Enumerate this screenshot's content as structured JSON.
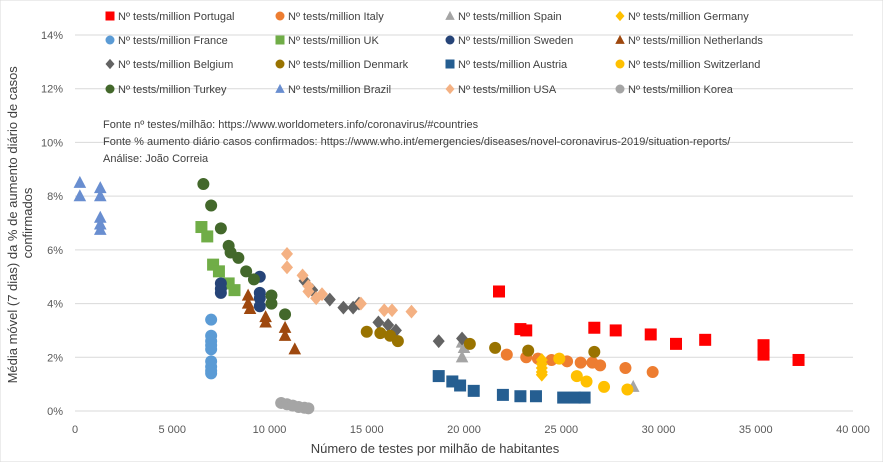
{
  "chart_data": {
    "type": "scatter",
    "xlabel": "Número  de testes por milhão de habitantes",
    "ylabel": "Média móvel (7 dias) da % de aumento diário de casos confirmados",
    "xlim": [
      0,
      40000
    ],
    "ylim": [
      0,
      14
    ],
    "x_ticks": [
      0,
      5000,
      10000,
      15000,
      20000,
      25000,
      30000,
      35000,
      40000
    ],
    "x_tick_labels": [
      "0",
      "5 000",
      "10 000",
      "15 000",
      "20 000",
      "25 000",
      "30 000",
      "35 000",
      "40 000"
    ],
    "y_ticks": [
      0,
      2,
      4,
      6,
      8,
      10,
      12,
      14
    ],
    "y_tick_labels": [
      "0%",
      "2%",
      "4%",
      "6%",
      "8%",
      "10%",
      "12%",
      "14%"
    ],
    "grid": "horizontal",
    "legend_position": "top",
    "notes": [
      "Fonte nº testes/milhão: https://www.worldometers.info/coronavirus/#countries",
      "Fonte % aumento diário casos confirmados: https://www.who.int/emergencies/diseases/novel-coronavirus-2019/situation-reports/",
      "Análise: João Correia"
    ],
    "series": [
      {
        "name": "Nº tests/million Portugal",
        "color": "#ff0000",
        "marker": "square",
        "points": [
          [
            21800,
            4.45
          ],
          [
            22900,
            3.05
          ],
          [
            23200,
            3.0
          ],
          [
            26700,
            3.1
          ],
          [
            27800,
            3.0
          ],
          [
            29600,
            2.85
          ],
          [
            30900,
            2.5
          ],
          [
            32400,
            2.65
          ],
          [
            35400,
            2.45
          ],
          [
            35400,
            2.1
          ],
          [
            37200,
            1.9
          ]
        ]
      },
      {
        "name": "Nº tests/million Italy",
        "color": "#ed7d31",
        "marker": "circle",
        "points": [
          [
            22200,
            2.1
          ],
          [
            23200,
            2.0
          ],
          [
            23800,
            1.95
          ],
          [
            24500,
            1.9
          ],
          [
            25300,
            1.85
          ],
          [
            26000,
            1.8
          ],
          [
            26600,
            1.8
          ],
          [
            27000,
            1.7
          ],
          [
            28300,
            1.6
          ],
          [
            29700,
            1.45
          ]
        ]
      },
      {
        "name": "Nº tests/million Spain",
        "color": "#a5a5a5",
        "marker": "triangle",
        "points": [
          [
            19900,
            2.55
          ],
          [
            20000,
            2.35
          ],
          [
            19900,
            2.0
          ],
          [
            28700,
            0.9
          ]
        ]
      },
      {
        "name": "Nº tests/million Germany",
        "color": "#ffc000",
        "marker": "diamond",
        "points": [
          [
            24000,
            1.9
          ],
          [
            24000,
            1.75
          ],
          [
            24000,
            1.6
          ],
          [
            24000,
            1.45
          ],
          [
            24000,
            1.35
          ]
        ]
      },
      {
        "name": "Nº tests/million France",
        "color": "#5b9bd5",
        "marker": "circle",
        "points": [
          [
            7000,
            3.4
          ],
          [
            7000,
            2.8
          ],
          [
            7000,
            2.6
          ],
          [
            7000,
            2.45
          ],
          [
            7000,
            2.3
          ],
          [
            7000,
            1.85
          ],
          [
            7000,
            1.65
          ],
          [
            7000,
            1.5
          ],
          [
            7000,
            1.4
          ]
        ]
      },
      {
        "name": "Nº tests/million UK",
        "color": "#70ad47",
        "marker": "square",
        "points": [
          [
            6500,
            6.85
          ],
          [
            6800,
            6.5
          ],
          [
            7100,
            5.45
          ],
          [
            7400,
            5.2
          ],
          [
            7900,
            4.75
          ],
          [
            8200,
            4.5
          ]
        ]
      },
      {
        "name": "Nº tests/million Sweden",
        "color": "#264478",
        "marker": "circle",
        "points": [
          [
            7500,
            4.75
          ],
          [
            7500,
            4.55
          ],
          [
            7500,
            4.4
          ],
          [
            9500,
            5.0
          ],
          [
            9500,
            4.4
          ],
          [
            9500,
            4.2
          ],
          [
            9500,
            3.9
          ]
        ]
      },
      {
        "name": "Nº tests/million Netherlands",
        "color": "#9e480e",
        "marker": "triangle",
        "points": [
          [
            8900,
            4.3
          ],
          [
            8900,
            4.0
          ],
          [
            9000,
            3.8
          ],
          [
            9800,
            3.5
          ],
          [
            9800,
            3.3
          ],
          [
            10800,
            3.1
          ],
          [
            10800,
            2.8
          ],
          [
            11300,
            2.3
          ]
        ]
      },
      {
        "name": "Nº tests/million Belgium",
        "color": "#636363",
        "marker": "diamond",
        "points": [
          [
            11800,
            4.85
          ],
          [
            12200,
            4.5
          ],
          [
            13100,
            4.15
          ],
          [
            13800,
            3.85
          ],
          [
            14300,
            3.85
          ],
          [
            14600,
            4.0
          ],
          [
            15600,
            3.3
          ],
          [
            16100,
            3.2
          ],
          [
            16500,
            3.0
          ],
          [
            18700,
            2.6
          ],
          [
            19900,
            2.7
          ]
        ]
      },
      {
        "name": "Nº tests/million Denmark",
        "color": "#997300",
        "marker": "circle",
        "points": [
          [
            15000,
            2.95
          ],
          [
            15700,
            2.9
          ],
          [
            16200,
            2.8
          ],
          [
            16600,
            2.6
          ],
          [
            20300,
            2.5
          ],
          [
            21600,
            2.35
          ],
          [
            23300,
            2.25
          ],
          [
            26700,
            2.2
          ]
        ]
      },
      {
        "name": "Nº tests/million Austria",
        "color": "#255e91",
        "marker": "square",
        "points": [
          [
            18700,
            1.3
          ],
          [
            19400,
            1.1
          ],
          [
            19800,
            0.95
          ],
          [
            20500,
            0.75
          ],
          [
            22000,
            0.6
          ],
          [
            22900,
            0.55
          ],
          [
            23700,
            0.55
          ],
          [
            25100,
            0.5
          ],
          [
            25700,
            0.5
          ],
          [
            26200,
            0.5
          ]
        ]
      },
      {
        "name": "Nº tests/million Switzerland",
        "color": "#ffc000",
        "marker": "circle",
        "points": [
          [
            24900,
            1.95
          ],
          [
            25800,
            1.3
          ],
          [
            26300,
            1.1
          ],
          [
            27200,
            0.9
          ],
          [
            28400,
            0.8
          ]
        ]
      },
      {
        "name": "Nº tests/million Turkey",
        "color": "#43682b",
        "marker": "circle",
        "points": [
          [
            6600,
            8.45
          ],
          [
            7000,
            7.65
          ],
          [
            7500,
            6.8
          ],
          [
            7900,
            6.15
          ],
          [
            8000,
            5.9
          ],
          [
            8400,
            5.7
          ],
          [
            8800,
            5.2
          ],
          [
            9200,
            4.9
          ],
          [
            10100,
            4.3
          ],
          [
            10100,
            4.0
          ],
          [
            10800,
            3.6
          ]
        ]
      },
      {
        "name": "Nº tests/million Brazil",
        "color": "#698ed0",
        "marker": "triangle",
        "points": [
          [
            250,
            8.5
          ],
          [
            250,
            8.0
          ],
          [
            1300,
            8.3
          ],
          [
            1300,
            8.0
          ],
          [
            1300,
            7.2
          ],
          [
            1300,
            6.95
          ],
          [
            1300,
            6.75
          ]
        ]
      },
      {
        "name": "Nº tests/million USA",
        "color": "#f4b183",
        "marker": "diamond",
        "points": [
          [
            10900,
            5.85
          ],
          [
            10900,
            5.35
          ],
          [
            11700,
            5.05
          ],
          [
            12000,
            4.65
          ],
          [
            12000,
            4.45
          ],
          [
            12400,
            4.2
          ],
          [
            12700,
            4.35
          ],
          [
            14700,
            4.0
          ],
          [
            15900,
            3.75
          ],
          [
            16300,
            3.75
          ],
          [
            17300,
            3.7
          ]
        ]
      },
      {
        "name": "Nº tests/million Korea",
        "color": "#a5a5a5",
        "marker": "circle",
        "points": [
          [
            10600,
            0.3
          ],
          [
            10900,
            0.25
          ],
          [
            11200,
            0.2
          ],
          [
            11500,
            0.15
          ],
          [
            11800,
            0.12
          ],
          [
            12000,
            0.1
          ]
        ]
      }
    ]
  }
}
